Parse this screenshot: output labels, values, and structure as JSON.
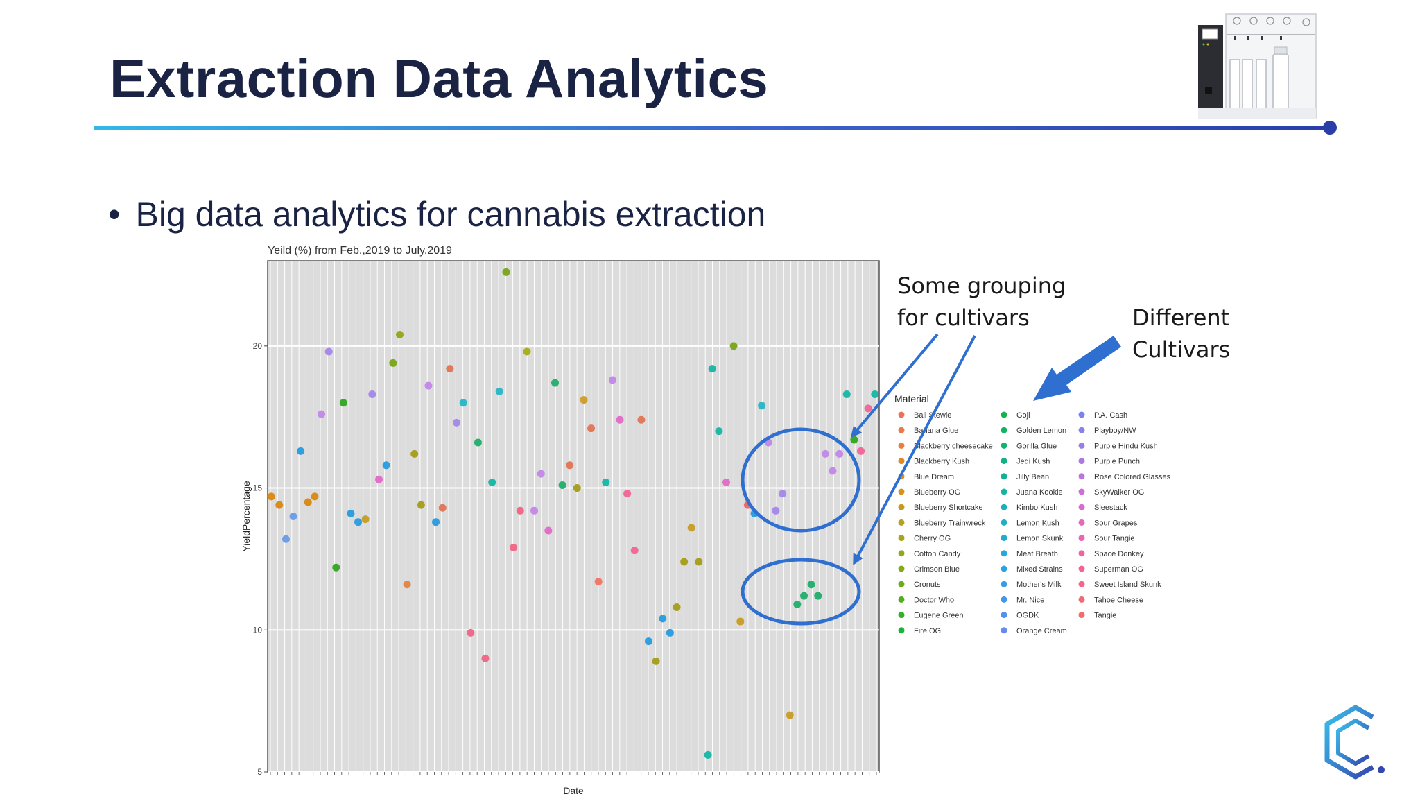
{
  "slide": {
    "title": "Extraction Data Analytics",
    "bullet": "Big data analytics for cannabis extraction",
    "accent_color": "#2f6fd0",
    "title_color": "#1a2344"
  },
  "callouts": {
    "grouping": "Some grouping\nfor cultivars",
    "different": "Different\nCultivars"
  },
  "icons": [
    "extraction-machine-icon",
    "company-logo-icon",
    "bullet-dot"
  ],
  "chart_data": {
    "type": "scatter",
    "title": "Yeild (%) from Feb.,2019 to July,2019",
    "xlabel": "Date",
    "ylabel": "YieldPercentage",
    "ylim": [
      5,
      23
    ],
    "yticks": [
      5,
      10,
      15,
      20
    ],
    "xlim": [
      0,
      1
    ],
    "grid": true,
    "legend_title": "Material",
    "legend_position": "right",
    "points": [
      {
        "x": 0.006,
        "y": 14.7,
        "c": "#d98c1a"
      },
      {
        "x": 0.019,
        "y": 14.4,
        "c": "#d98c1a"
      },
      {
        "x": 0.03,
        "y": 13.2,
        "c": "#6f9fe8"
      },
      {
        "x": 0.042,
        "y": 14.0,
        "c": "#6f9fe8"
      },
      {
        "x": 0.054,
        "y": 16.3,
        "c": "#2f9fe0"
      },
      {
        "x": 0.066,
        "y": 14.5,
        "c": "#d98c1a"
      },
      {
        "x": 0.077,
        "y": 14.7,
        "c": "#d98c1a"
      },
      {
        "x": 0.088,
        "y": 17.6,
        "c": "#c48be8"
      },
      {
        "x": 0.1,
        "y": 19.8,
        "c": "#a78be8"
      },
      {
        "x": 0.112,
        "y": 12.2,
        "c": "#3aa82a"
      },
      {
        "x": 0.124,
        "y": 18.0,
        "c": "#3aa82a"
      },
      {
        "x": 0.136,
        "y": 14.1,
        "c": "#2f9fe0"
      },
      {
        "x": 0.148,
        "y": 13.8,
        "c": "#2f9fe0"
      },
      {
        "x": 0.16,
        "y": 13.9,
        "c": "#c8a030"
      },
      {
        "x": 0.171,
        "y": 18.3,
        "c": "#a78be8"
      },
      {
        "x": 0.182,
        "y": 15.3,
        "c": "#e070c8"
      },
      {
        "x": 0.194,
        "y": 15.8,
        "c": "#2f9fe0"
      },
      {
        "x": 0.205,
        "y": 19.4,
        "c": "#7ea820"
      },
      {
        "x": 0.216,
        "y": 20.4,
        "c": "#9aa820"
      },
      {
        "x": 0.228,
        "y": 11.6,
        "c": "#e08a4a"
      },
      {
        "x": 0.24,
        "y": 16.2,
        "c": "#a8a020"
      },
      {
        "x": 0.251,
        "y": 14.4,
        "c": "#a8a020"
      },
      {
        "x": 0.263,
        "y": 18.6,
        "c": "#c48be8"
      },
      {
        "x": 0.275,
        "y": 13.8,
        "c": "#2f9fe0"
      },
      {
        "x": 0.286,
        "y": 14.3,
        "c": "#e07a5a"
      },
      {
        "x": 0.298,
        "y": 19.2,
        "c": "#e07a5a"
      },
      {
        "x": 0.309,
        "y": 17.3,
        "c": "#a78be8"
      },
      {
        "x": 0.32,
        "y": 18.0,
        "c": "#30b8c8"
      },
      {
        "x": 0.332,
        "y": 9.9,
        "c": "#f06a8a"
      },
      {
        "x": 0.344,
        "y": 16.6,
        "c": "#2ab070"
      },
      {
        "x": 0.356,
        "y": 9.0,
        "c": "#f06a8a"
      },
      {
        "x": 0.367,
        "y": 15.2,
        "c": "#20b8a8"
      },
      {
        "x": 0.379,
        "y": 18.4,
        "c": "#30b8c8"
      },
      {
        "x": 0.39,
        "y": 22.6,
        "c": "#7ea820"
      },
      {
        "x": 0.402,
        "y": 12.9,
        "c": "#f06a8a"
      },
      {
        "x": 0.413,
        "y": 14.2,
        "c": "#f06a8a"
      },
      {
        "x": 0.424,
        "y": 19.8,
        "c": "#a8b020"
      },
      {
        "x": 0.436,
        "y": 14.2,
        "c": "#c48be8"
      },
      {
        "x": 0.447,
        "y": 15.5,
        "c": "#c48be8"
      },
      {
        "x": 0.459,
        "y": 13.5,
        "c": "#e070c8"
      },
      {
        "x": 0.47,
        "y": 18.7,
        "c": "#2ab070"
      },
      {
        "x": 0.482,
        "y": 15.1,
        "c": "#2ab070"
      },
      {
        "x": 0.494,
        "y": 15.8,
        "c": "#e07a5a"
      },
      {
        "x": 0.506,
        "y": 15.0,
        "c": "#a8a020"
      },
      {
        "x": 0.517,
        "y": 18.1,
        "c": "#d0a030"
      },
      {
        "x": 0.529,
        "y": 17.1,
        "c": "#e07a5a"
      },
      {
        "x": 0.541,
        "y": 11.7,
        "c": "#f07a6a"
      },
      {
        "x": 0.553,
        "y": 15.2,
        "c": "#20b8a8"
      },
      {
        "x": 0.564,
        "y": 18.8,
        "c": "#c48be8"
      },
      {
        "x": 0.576,
        "y": 17.4,
        "c": "#e070c8"
      },
      {
        "x": 0.588,
        "y": 14.8,
        "c": "#f06a9a"
      },
      {
        "x": 0.6,
        "y": 12.8,
        "c": "#f06a9a"
      },
      {
        "x": 0.611,
        "y": 17.4,
        "c": "#e07a5a"
      },
      {
        "x": 0.623,
        "y": 9.6,
        "c": "#2f9fe0"
      },
      {
        "x": 0.635,
        "y": 8.9,
        "c": "#a8a020"
      },
      {
        "x": 0.646,
        "y": 10.4,
        "c": "#2f9fe0"
      },
      {
        "x": 0.658,
        "y": 9.9,
        "c": "#2f9fe0"
      },
      {
        "x": 0.669,
        "y": 10.8,
        "c": "#a8a020"
      },
      {
        "x": 0.681,
        "y": 12.4,
        "c": "#a8a020"
      },
      {
        "x": 0.693,
        "y": 13.6,
        "c": "#c8a030"
      },
      {
        "x": 0.705,
        "y": 12.4,
        "c": "#a8a020"
      },
      {
        "x": 0.727,
        "y": 19.2,
        "c": "#20b8a8"
      },
      {
        "x": 0.738,
        "y": 17.0,
        "c": "#20b8a8"
      },
      {
        "x": 0.75,
        "y": 15.2,
        "c": "#e070c8"
      },
      {
        "x": 0.762,
        "y": 20.0,
        "c": "#7ea820"
      },
      {
        "x": 0.773,
        "y": 10.3,
        "c": "#c8a030"
      },
      {
        "x": 0.785,
        "y": 14.4,
        "c": "#f06a6a"
      },
      {
        "x": 0.796,
        "y": 14.1,
        "c": "#2f9fe0"
      },
      {
        "x": 0.808,
        "y": 17.9,
        "c": "#30b8c8"
      },
      {
        "x": 0.819,
        "y": 16.6,
        "c": "#c48be8"
      },
      {
        "x": 0.831,
        "y": 14.2,
        "c": "#a78be8"
      },
      {
        "x": 0.842,
        "y": 14.8,
        "c": "#a78be8"
      },
      {
        "x": 0.854,
        "y": 7.0,
        "c": "#c8a030"
      },
      {
        "x": 0.866,
        "y": 10.9,
        "c": "#2ab070"
      },
      {
        "x": 0.877,
        "y": 11.2,
        "c": "#2ab070"
      },
      {
        "x": 0.889,
        "y": 11.6,
        "c": "#2ab070"
      },
      {
        "x": 0.9,
        "y": 11.2,
        "c": "#2ab070"
      },
      {
        "x": 0.912,
        "y": 16.2,
        "c": "#c48be8"
      },
      {
        "x": 0.924,
        "y": 15.6,
        "c": "#c48be8"
      },
      {
        "x": 0.935,
        "y": 16.2,
        "c": "#c48be8"
      },
      {
        "x": 0.947,
        "y": 18.3,
        "c": "#20b8a8"
      },
      {
        "x": 0.959,
        "y": 16.7,
        "c": "#3aa82a"
      },
      {
        "x": 0.97,
        "y": 16.3,
        "c": "#f06a9a"
      },
      {
        "x": 0.982,
        "y": 17.8,
        "c": "#f06a9a"
      },
      {
        "x": 0.993,
        "y": 18.3,
        "c": "#20b8a8"
      },
      {
        "x": 0.72,
        "y": 5.6,
        "c": "#20b8a8"
      }
    ],
    "legend": [
      [
        {
          "name": "Bali Stewie",
          "color": "#e8735a"
        },
        {
          "name": "Banana Glue",
          "color": "#e87a4a"
        },
        {
          "name": "Blackberry cheesecake",
          "color": "#e8803a"
        },
        {
          "name": "Blackberry Kush",
          "color": "#e2862a"
        },
        {
          "name": "Blue Dream",
          "color": "#dd8c1c"
        },
        {
          "name": "Blueberry OG",
          "color": "#d4931a"
        },
        {
          "name": "Blueberry Shortcake",
          "color": "#c89a1a"
        },
        {
          "name": "Blueberry Trainwreck",
          "color": "#b8a01a"
        },
        {
          "name": "Cherry OG",
          "color": "#a8a41a"
        },
        {
          "name": "Cotton Candy",
          "color": "#96a81a"
        },
        {
          "name": "Crimson Blue",
          "color": "#82aa1a"
        },
        {
          "name": "Cronuts",
          "color": "#6cac1c"
        },
        {
          "name": "Doctor Who",
          "color": "#52ae20"
        },
        {
          "name": "Eugene Green",
          "color": "#36b02a"
        },
        {
          "name": "Fire OG",
          "color": "#1ab23a"
        }
      ],
      [
        {
          "name": "Goji",
          "color": "#16b24c"
        },
        {
          "name": "Golden Lemon",
          "color": "#14b25e"
        },
        {
          "name": "Gorilla Glue",
          "color": "#14b270"
        },
        {
          "name": "Jedi Kush",
          "color": "#14b282"
        },
        {
          "name": "Jilly Bean",
          "color": "#14b294"
        },
        {
          "name": "Juana Kookie",
          "color": "#16b2a6"
        },
        {
          "name": "Kimbo Kush",
          "color": "#18b2b6"
        },
        {
          "name": "Lemon Kush",
          "color": "#1cb0c4"
        },
        {
          "name": "Lemon Skunk",
          "color": "#20acd0"
        },
        {
          "name": "Meat Breath",
          "color": "#26a8da"
        },
        {
          "name": "Mixed Strains",
          "color": "#2ca2e2"
        },
        {
          "name": "Mother's Milk",
          "color": "#369ce8"
        },
        {
          "name": "Mr. Nice",
          "color": "#4496ec"
        },
        {
          "name": "OGDK",
          "color": "#5490ee"
        },
        {
          "name": "Orange Cream",
          "color": "#668aee"
        }
      ],
      [
        {
          "name": "P.A. Cash",
          "color": "#7884ee"
        },
        {
          "name": "Playboy/NW",
          "color": "#8a80ec"
        },
        {
          "name": "Purple Hindu Kush",
          "color": "#9c7ce8"
        },
        {
          "name": "Purple Punch",
          "color": "#ae78e4"
        },
        {
          "name": "Rose Colored Glasses",
          "color": "#be74de"
        },
        {
          "name": "SkyWalker OG",
          "color": "#cc70d6"
        },
        {
          "name": "Sleestack",
          "color": "#d86ccc"
        },
        {
          "name": "Sour Grapes",
          "color": "#e268c0"
        },
        {
          "name": "Sour Tangie",
          "color": "#ea66b2"
        },
        {
          "name": "Space Donkey",
          "color": "#f064a4"
        },
        {
          "name": "Superman OG",
          "color": "#f26494"
        },
        {
          "name": "Sweet Island Skunk",
          "color": "#f26686"
        },
        {
          "name": "Tahoe Cheese",
          "color": "#f06a78"
        },
        {
          "name": "Tangie",
          "color": "#ee6e6a"
        }
      ]
    ]
  }
}
